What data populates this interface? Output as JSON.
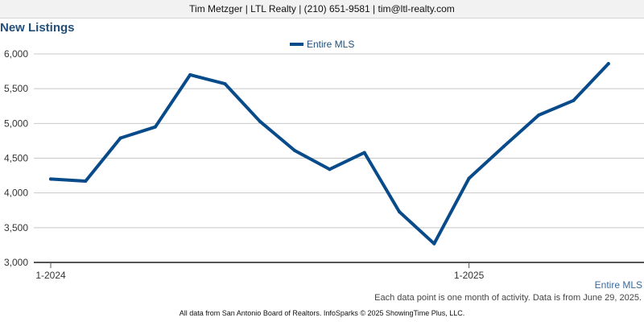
{
  "header": {
    "contact": "Tim Metzger | LTL Realty | (210) 651-9581 | tim@ltl-realty.com"
  },
  "chart_data": {
    "type": "line",
    "title": "New Listings",
    "x": [
      "1-2024",
      "2-2024",
      "3-2024",
      "4-2024",
      "5-2024",
      "6-2024",
      "7-2024",
      "8-2024",
      "9-2024",
      "10-2024",
      "11-2024",
      "12-2024",
      "1-2025",
      "2-2025",
      "3-2025",
      "4-2025",
      "5-2025"
    ],
    "x_tick_labels": [
      "1-2024",
      "1-2025"
    ],
    "series": [
      {
        "name": "Entire MLS",
        "color": "#084b8a",
        "values": [
          4200,
          4170,
          4790,
          4950,
          5700,
          5570,
          5030,
          4610,
          4340,
          4580,
          3730,
          3270,
          4210,
          4670,
          5120,
          5330,
          5860
        ]
      }
    ],
    "y_ticks": [
      "3,000",
      "3,500",
      "4,000",
      "4,500",
      "5,000",
      "5,500",
      "6,000"
    ],
    "y_tick_values": [
      3000,
      3500,
      4000,
      4500,
      5000,
      5500,
      6000
    ],
    "ylim": [
      3000,
      6000
    ],
    "grid": true,
    "legend_position": "top-center"
  },
  "series_footer_label": "Entire MLS",
  "note": "Each data point is one month of activity. Data is from June 29, 2025.",
  "footer": "All data from San Antonio Board of Realtors. InfoSparks © 2025 ShowingTime Plus, LLC."
}
